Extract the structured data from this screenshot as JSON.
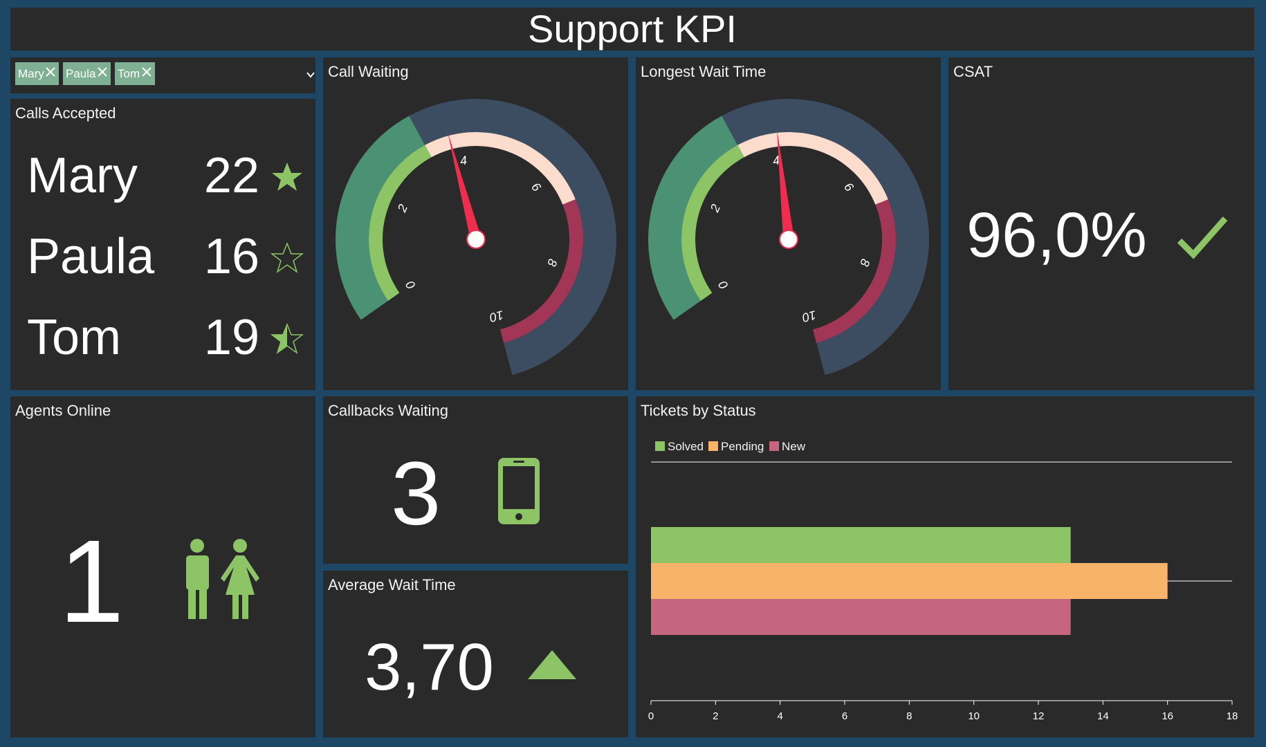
{
  "header": {
    "title": "Support KPI"
  },
  "filter": {
    "chips": [
      "Mary",
      "Paula",
      "Tom"
    ]
  },
  "calls_accepted": {
    "title": "Calls Accepted",
    "rows": [
      {
        "name": "Mary",
        "value": "22",
        "rating": 1.0
      },
      {
        "name": "Paula",
        "value": "16",
        "rating": 0.0
      },
      {
        "name": "Tom",
        "value": "19",
        "rating": 0.5
      }
    ]
  },
  "call_waiting": {
    "title": "Call Waiting"
  },
  "longest_wait": {
    "title": "Longest Wait Time"
  },
  "csat": {
    "title": "CSAT",
    "value": "96,0%"
  },
  "agents_online": {
    "title": "Agents Online",
    "value": "1"
  },
  "callbacks_waiting": {
    "title": "Callbacks Waiting",
    "value": "3"
  },
  "average_wait": {
    "title": "Average Wait Time",
    "value": "3,70"
  },
  "tickets": {
    "title": "Tickets by Status"
  },
  "colors": {
    "green": "#8cc466",
    "teal": "#4b9173",
    "peach": "#fcdccd",
    "crimson": "#a23657",
    "slate": "#3c4d61",
    "needle": "#ee2d4f",
    "orange": "#f8b36b",
    "pink": "#c66580"
  },
  "chart_data": [
    {
      "type": "gauge",
      "title": "Call Waiting",
      "min": 0,
      "max": 10,
      "ticks": [
        "0",
        "2",
        "4",
        "6",
        "8",
        "10"
      ],
      "value": 3.8
    },
    {
      "type": "gauge",
      "title": "Longest Wait Time",
      "min": 0,
      "max": 10,
      "ticks": [
        "0",
        "2",
        "4",
        "6",
        "8",
        "10"
      ],
      "value": 4.1
    },
    {
      "type": "bar",
      "orientation": "horizontal",
      "title": "Tickets by Status",
      "legend": "top-left",
      "series": [
        {
          "name": "Solved",
          "values": [
            13
          ]
        },
        {
          "name": "Pending",
          "values": [
            16
          ]
        },
        {
          "name": "New",
          "values": [
            13
          ]
        }
      ],
      "xlim": [
        0,
        18
      ],
      "xticks": [
        "0",
        "2",
        "4",
        "6",
        "8",
        "10",
        "12",
        "14",
        "16",
        "18"
      ]
    }
  ]
}
